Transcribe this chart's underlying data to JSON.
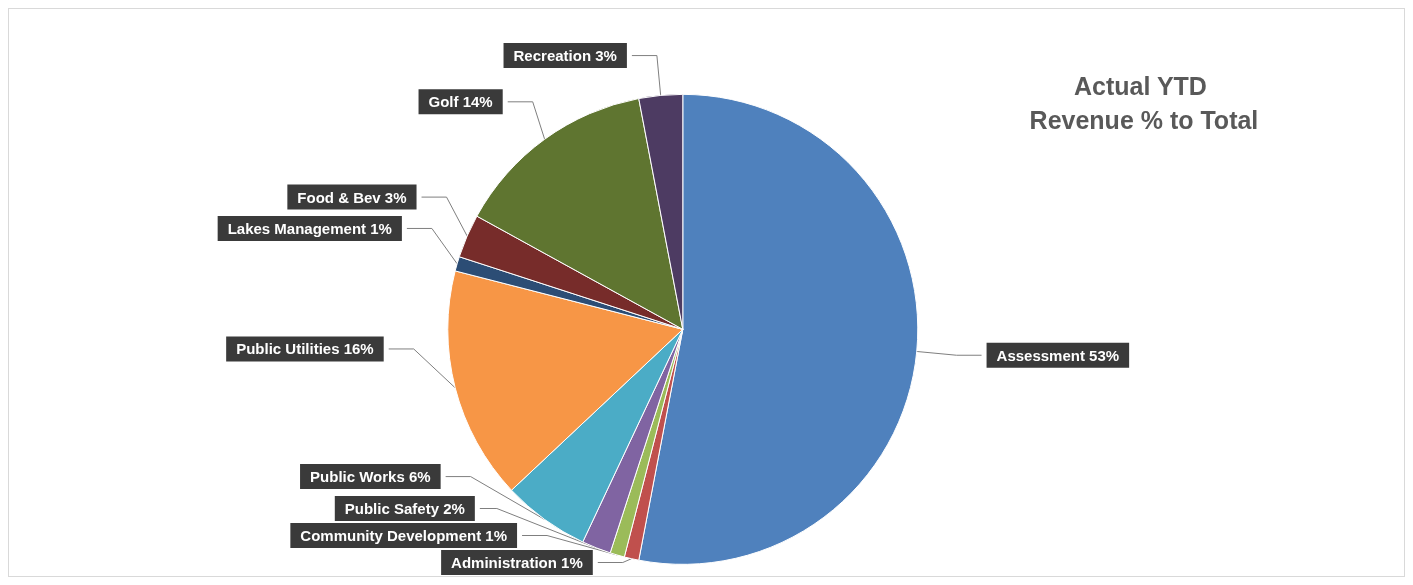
{
  "chart_data": {
    "type": "pie",
    "title": "Actual YTD Revenue % to Total",
    "categories": [
      "Assessment",
      "Administration",
      "Community Development",
      "Public Safety",
      "Public Works",
      "Public Utilities",
      "Lakes Management",
      "Food & Bev",
      "Golf",
      "Recreation"
    ],
    "values": [
      53,
      1,
      1,
      2,
      6,
      16,
      1,
      3,
      14,
      3
    ],
    "colors": [
      "#4f81bd",
      "#c0504d",
      "#9bbb59",
      "#8064a2",
      "#4bacc6",
      "#f79646",
      "#2c4d75",
      "#772c2a",
      "#5f7530",
      "#4d3b62"
    ],
    "value_labels": [
      "53%",
      "1%",
      "1%",
      "2%",
      "6%",
      "16%",
      "1%",
      "3%",
      "14%",
      "3%"
    ],
    "legend": false
  }
}
